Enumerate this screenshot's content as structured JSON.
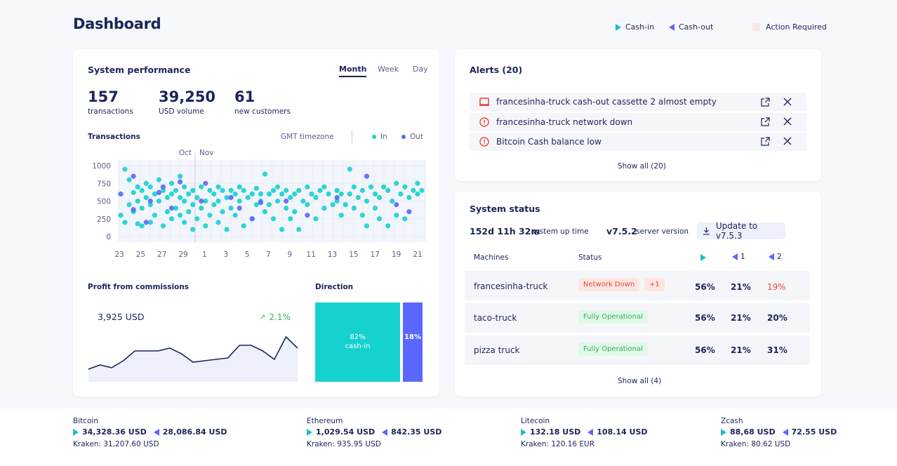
{
  "header": {
    "title": "Dashboard",
    "legend_in": "Cash-in",
    "legend_out": "Cash-out",
    "legend_action": "Action Required"
  },
  "perf": {
    "title": "System performance",
    "tabs": [
      "Month",
      "Week",
      "Day"
    ],
    "stats": [
      {
        "value": "157",
        "label": "transactions"
      },
      {
        "value": "39,250",
        "label": "USD volume"
      },
      {
        "value": "61",
        "label": "new customers"
      }
    ],
    "transactions_label": "Transactions",
    "timezone": "GMT timezone",
    "legend_in": "In",
    "legend_out": "Out",
    "month_labels": [
      "Oct",
      "Nov"
    ],
    "profit_title": "Profit from commissions",
    "profit_value": "3,925 USD",
    "profit_change": "2.1%",
    "direction_title": "Direction",
    "dir_in_pct": "82%",
    "dir_in_label": "cash-in",
    "dir_out_pct": "18%",
    "dir_in_value": 82,
    "dir_out_value": 18
  },
  "chart_data": [
    {
      "type": "scatter",
      "title": "Transactions",
      "xlabel": "",
      "ylabel": "",
      "x_ticks": [
        "23",
        "25",
        "27",
        "29",
        "1",
        "3",
        "5",
        "7",
        "9",
        "11",
        "13",
        "15",
        "17",
        "19",
        "21"
      ],
      "y_ticks": [
        "1000",
        "750",
        "500",
        "250",
        "0"
      ],
      "ylim": [
        0,
        1000
      ],
      "series": [
        {
          "name": "In",
          "color": "#16d2cf",
          "points": [
            [
              0,
              300
            ],
            [
              1,
              200
            ],
            [
              1,
              950
            ],
            [
              2,
              450
            ],
            [
              2,
              800
            ],
            [
              3,
              350
            ],
            [
              3,
              620
            ],
            [
              4,
              180
            ],
            [
              4,
              500
            ],
            [
              4,
              700
            ],
            [
              5,
              150
            ],
            [
              5,
              400
            ],
            [
              5,
              650
            ],
            [
              6,
              550
            ],
            [
              6,
              750
            ],
            [
              7,
              200
            ],
            [
              7,
              450
            ],
            [
              7,
              700
            ],
            [
              8,
              600
            ],
            [
              8,
              300
            ],
            [
              9,
              500
            ],
            [
              9,
              800
            ],
            [
              10,
              150
            ],
            [
              10,
              650
            ],
            [
              11,
              350
            ],
            [
              11,
              550
            ],
            [
              12,
              250
            ],
            [
              12,
              600
            ],
            [
              12,
              750
            ],
            [
              13,
              400
            ],
            [
              13,
              650
            ],
            [
              14,
              300
            ],
            [
              14,
              550
            ],
            [
              14,
              850
            ],
            [
              15,
              200
            ],
            [
              15,
              500
            ],
            [
              15,
              700
            ],
            [
              16,
              350
            ],
            [
              16,
              600
            ],
            [
              17,
              100
            ],
            [
              17,
              450
            ],
            [
              17,
              650
            ],
            [
              18,
              250
            ],
            [
              18,
              550
            ],
            [
              19,
              400
            ],
            [
              19,
              700
            ],
            [
              20,
              150
            ],
            [
              20,
              500
            ],
            [
              21,
              300
            ],
            [
              21,
              650
            ],
            [
              22,
              600
            ],
            [
              22,
              450
            ],
            [
              23,
              200
            ],
            [
              23,
              500
            ],
            [
              23,
              700
            ],
            [
              24,
              350
            ],
            [
              24,
              650
            ],
            [
              25,
              100
            ],
            [
              25,
              550
            ],
            [
              26,
              400
            ],
            [
              26,
              650
            ],
            [
              27,
              300
            ],
            [
              27,
              600
            ],
            [
              28,
              500
            ],
            [
              28,
              700
            ],
            [
              29,
              150
            ],
            [
              29,
              650
            ],
            [
              30,
              550
            ],
            [
              31,
              250
            ],
            [
              31,
              600
            ],
            [
              32,
              450
            ],
            [
              32,
              680
            ],
            [
              33,
              500
            ],
            [
              33,
              600
            ],
            [
              34,
              350
            ],
            [
              34,
              880
            ],
            [
              35,
              600
            ],
            [
              35,
              450
            ],
            [
              36,
              250
            ],
            [
              36,
              650
            ],
            [
              37,
              500
            ],
            [
              37,
              700
            ],
            [
              38,
              100
            ],
            [
              38,
              600
            ],
            [
              39,
              400
            ],
            [
              39,
              650
            ],
            [
              40,
              250
            ],
            [
              40,
              550
            ],
            [
              41,
              600
            ],
            [
              41,
              350
            ],
            [
              42,
              100
            ],
            [
              42,
              650
            ],
            [
              43,
              500
            ],
            [
              44,
              700
            ],
            [
              44,
              450
            ],
            [
              45,
              600
            ],
            [
              46,
              250
            ],
            [
              46,
              550
            ],
            [
              47,
              650
            ],
            [
              48,
              400
            ],
            [
              48,
              700
            ],
            [
              49,
              600
            ],
            [
              50,
              450
            ],
            [
              51,
              500
            ],
            [
              51,
              650
            ],
            [
              52,
              300
            ],
            [
              52,
              600
            ],
            [
              53,
              450
            ],
            [
              54,
              950
            ],
            [
              54,
              600
            ],
            [
              55,
              400
            ],
            [
              55,
              700
            ],
            [
              56,
              550
            ],
            [
              57,
              300
            ],
            [
              57,
              650
            ],
            [
              58,
              150
            ],
            [
              58,
              500
            ],
            [
              59,
              700
            ],
            [
              60,
              400
            ],
            [
              60,
              600
            ],
            [
              61,
              250
            ],
            [
              61,
              550
            ],
            [
              62,
              700
            ],
            [
              63,
              150
            ],
            [
              63,
              650
            ],
            [
              64,
              500
            ],
            [
              65,
              300
            ],
            [
              65,
              750
            ],
            [
              66,
              600
            ],
            [
              67,
              250
            ],
            [
              67,
              700
            ],
            [
              68,
              550
            ],
            [
              69,
              650
            ],
            [
              70,
              750
            ],
            [
              70,
              600
            ],
            [
              71,
              650
            ]
          ]
        },
        {
          "name": "Out",
          "color": "#5a67ff",
          "points": [
            [
              0,
              600
            ],
            [
              3,
              380
            ],
            [
              3,
              850
            ],
            [
              6,
              200
            ],
            [
              7,
              500
            ],
            [
              9,
              620
            ],
            [
              10,
              700
            ],
            [
              12,
              400
            ],
            [
              14,
              770
            ],
            [
              19,
              500
            ],
            [
              20,
              750
            ],
            [
              26,
              550
            ],
            [
              28,
              400
            ],
            [
              31,
              250
            ],
            [
              33,
              480
            ],
            [
              39,
              500
            ],
            [
              44,
              300
            ],
            [
              51,
              550
            ],
            [
              58,
              850
            ],
            [
              65,
              450
            ],
            [
              68,
              350
            ]
          ]
        }
      ]
    },
    {
      "type": "area",
      "title": "Profit from commissions",
      "xlabel": "",
      "ylabel": "",
      "x": [
        0,
        1,
        2,
        3,
        4,
        5,
        6,
        7,
        8,
        9,
        10,
        11,
        12,
        13,
        14,
        15,
        16,
        17,
        18
      ],
      "values": [
        5,
        8,
        6,
        11,
        18,
        18,
        18,
        20,
        16,
        10,
        11,
        12,
        13,
        22,
        22,
        18,
        12,
        28,
        20
      ],
      "ylim": [
        0,
        35
      ]
    },
    {
      "type": "bar",
      "title": "Direction",
      "categories": [
        "cash-in",
        "cash-out"
      ],
      "values": [
        82,
        18
      ]
    }
  ],
  "alerts": {
    "title": "Alerts (20)",
    "items": [
      {
        "icon": "laptop-icon",
        "text": "francesinha-truck cash-out cassette 2 almost empty"
      },
      {
        "icon": "warning-circle-icon",
        "text": "francesinha-truck network down"
      },
      {
        "icon": "warning-circle-icon",
        "text": "Bitcoin Cash balance low"
      }
    ],
    "show_all": "Show all (20)"
  },
  "status": {
    "title": "System status",
    "uptime_value": "152d 11h 32m",
    "uptime_label": "system up time",
    "version_value": "v7.5.2",
    "version_label": "server version",
    "update_label": "Update to v7.5.3",
    "col_machines": "Machines",
    "col_status": "Status",
    "col_c1": "1",
    "col_c2": "2",
    "rows": [
      {
        "name": "francesinha-truck",
        "status": "Network Down",
        "extra": "+1",
        "in": "56%",
        "c1": "21%",
        "c2": "19%",
        "warn": true
      },
      {
        "name": "taco-truck",
        "status": "Fully Operational",
        "extra": "",
        "in": "56%",
        "c1": "21%",
        "c2": "20%",
        "warn": false
      },
      {
        "name": "pizza truck",
        "status": "Fully Operational",
        "extra": "",
        "in": "56%",
        "c1": "21%",
        "c2": "31%",
        "warn": false
      }
    ],
    "show_all": "Show all (4)"
  },
  "footer": {
    "coins": [
      {
        "name": "Bitcoin",
        "buy": "34,328.36 USD",
        "sell": "28,086.84 USD",
        "kraken": "Kraken: 31,207.60 USD"
      },
      {
        "name": "Ethereum",
        "buy": "1,029.54 USD",
        "sell": "842.35 USD",
        "kraken": "Kraken: 935.95 USD"
      },
      {
        "name": "Litecoin",
        "buy": "132.18 USD",
        "sell": "108.14 USD",
        "kraken": "Kraken: 120.16 EUR"
      },
      {
        "name": "Zcash",
        "buy": "88,68 USD",
        "sell": "72.55 USD",
        "kraken": "Kraken: 80.62 USD"
      }
    ]
  },
  "colors": {
    "cash_in": "#16d2cf",
    "cash_out": "#5a67ff",
    "action": "#fde6e1",
    "alert_red": "#e8473b",
    "ok_green": "#2fb45a"
  }
}
